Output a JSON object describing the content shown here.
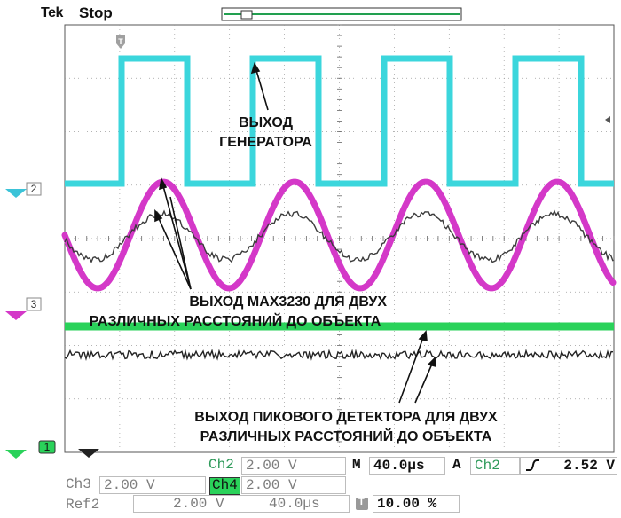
{
  "header": {
    "brand": "Tek",
    "state": "Stop"
  },
  "colors": {
    "ch1": "#3bd6dc",
    "ch2": "#d438c8",
    "ch3": "#2ad25a",
    "ref": "#3c3c3c",
    "grid": "#9a9a9a"
  },
  "markers": {
    "trigger_pos": "T",
    "ch2": "2",
    "ch3": "3",
    "ch1": "1"
  },
  "annotations": {
    "generator": [
      "ВЫХОД",
      "ГЕНЕРАТОРА"
    ],
    "max3230": [
      "ВЫХОД MAX3230 ДЛЯ ДВУХ",
      "РАЗЛИЧНЫХ РАССТОЯНИЙ ДО ОБЪЕКТА"
    ],
    "peak": [
      "ВЫХОД ПИКОВОГО ДЕТЕКТОРА ДЛЯ ДВУХ",
      "РАЗЛИЧНЫХ РАССТОЯНИЙ ДО ОБЪЕКТА"
    ]
  },
  "status": {
    "row1": {
      "ch_label": "Ch2",
      "ch_scale": "2.00 V",
      "m_label": "M",
      "timebase": "40.0µs",
      "a_label": "A",
      "trig_source": "Ch2",
      "trig_slope_icon": "rising-edge-icon",
      "trig_level": "2.52 V"
    },
    "row2": {
      "ch_label": "Ch3",
      "ch_scale": "2.00 V",
      "ch_label_b": "Ch4",
      "ch_scale_b": "2.00 V"
    },
    "row3": {
      "ref_label": "Ref2",
      "ref_scale": "2.00 V",
      "ref_time": "40.0µs",
      "pos_icon": "trigger-position-icon",
      "pos_value": "10.00 %"
    }
  }
}
